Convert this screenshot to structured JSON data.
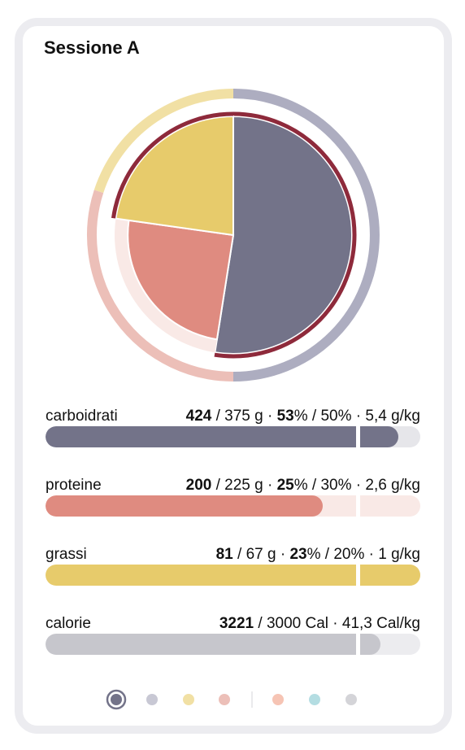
{
  "title": "Sessione A",
  "rows": [
    {
      "name": "carboidrati",
      "amount": 424,
      "goal": 375,
      "rest": " / 375 g · ",
      "pct": 53,
      "rest2": "% / 50% · 5,4 g/kg",
      "target_pct": 50,
      "color": "#737389",
      "ring_color": "#adadc0",
      "track_color": "#e6e6ea"
    },
    {
      "name": "proteine",
      "amount": 200,
      "goal": 225,
      "rest": " / 225 g · ",
      "pct": 25,
      "rest2": "% / 30% · 2,6 g/kg",
      "target_pct": 30,
      "color": "#df8b80",
      "ring_color": "#ecbfb8",
      "track_color": "#f9e9e6"
    },
    {
      "name": "grassi",
      "amount": 81,
      "goal": 67,
      "rest": " / 67 g · ",
      "pct": 23,
      "rest2": "% / 20% · 1 g/kg",
      "target_pct": 20,
      "color": "#e7cb6b",
      "ring_color": "#f1e0a4",
      "track_color": "#f8efd2"
    },
    {
      "name": "calorie",
      "amount": 3221,
      "goal": 3000,
      "rest": " / 3000 Cal · 41,3 Cal/kg",
      "color": "#c6c6cc",
      "track_color": "#ececef"
    }
  ],
  "over_color": "#8e2a3b"
}
